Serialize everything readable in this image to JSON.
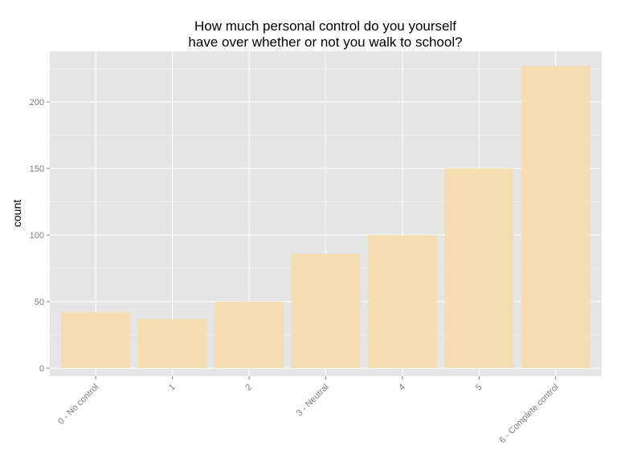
{
  "chart_data": {
    "type": "bar",
    "title_lines": [
      "How much personal control do you yourself",
      "have over whether or not you walk to school?"
    ],
    "xlabel": "",
    "ylabel": "count",
    "categories": [
      "0 - No control",
      "1",
      "2",
      "3 - Neutral",
      "4",
      "5",
      "6 - Complete control"
    ],
    "values": [
      42,
      37,
      50,
      86,
      100,
      150,
      227
    ],
    "ylim": [
      -6,
      238
    ],
    "yticks": [
      0,
      50,
      100,
      150,
      200
    ],
    "grid": true,
    "legend": "none",
    "colors": {
      "bar": "#f5deb3",
      "panel": "#e5e5e5",
      "grid_major": "#ffffff",
      "grid_minor": "#f2f2f2",
      "tick_text": "#7f7f7f"
    }
  }
}
